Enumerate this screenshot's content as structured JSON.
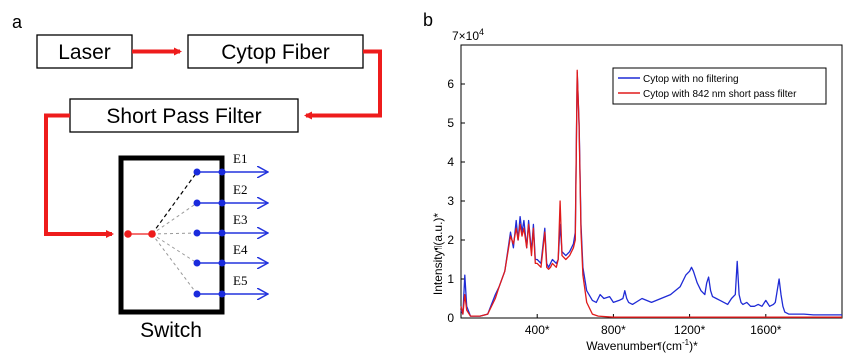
{
  "panels": {
    "a": "a",
    "b": "b"
  },
  "diagram": {
    "laser": "Laser",
    "fiber": "Cytop Fiber",
    "filter": "Short Pass Filter",
    "switch": "Switch",
    "outputs": [
      "E1",
      "E2",
      "E3",
      "E4",
      "E5"
    ],
    "colors": {
      "arrow": "#ee1c1c",
      "output": "#2233dd",
      "node_red": "#ee1c1c",
      "node_blue": "#1a2bdd"
    }
  },
  "chart_data": {
    "type": "line",
    "xlabel": "Wavenumber (cm⁻¹)",
    "ylabel": "Intensity (a.u.)",
    "y_exponent": "×10⁴",
    "xlim": [
      0,
      2000
    ],
    "ylim": [
      0,
      7
    ],
    "xticks": [
      400,
      800,
      1200,
      1600
    ],
    "xtick_labels": [
      "400",
      "800",
      "1200",
      "1600"
    ],
    "yticks": [
      0,
      1,
      2,
      3,
      4,
      5,
      6,
      7
    ],
    "legend_position": "top-right",
    "series": [
      {
        "name": "Cytop with no filtering",
        "color": "#1f2bd6",
        "x": [
          0,
          10,
          20,
          30,
          50,
          100,
          140,
          180,
          200,
          230,
          260,
          275,
          290,
          300,
          310,
          320,
          330,
          345,
          355,
          370,
          380,
          390,
          400,
          420,
          440,
          450,
          460,
          470,
          480,
          500,
          510,
          520,
          530,
          550,
          570,
          590,
          600,
          610,
          620,
          630,
          640,
          660,
          690,
          710,
          720,
          730,
          750,
          780,
          800,
          830,
          850,
          860,
          870,
          880,
          900,
          950,
          1000,
          1050,
          1100,
          1150,
          1180,
          1200,
          1210,
          1220,
          1240,
          1260,
          1280,
          1290,
          1300,
          1310,
          1320,
          1340,
          1360,
          1380,
          1400,
          1420,
          1440,
          1450,
          1460,
          1470,
          1480,
          1500,
          1520,
          1540,
          1560,
          1580,
          1600,
          1620,
          1640,
          1650,
          1660,
          1670,
          1680,
          1690,
          1700,
          1720,
          1750,
          1800,
          1850,
          1900,
          1950,
          2000
        ],
        "y": [
          0.2,
          0.1,
          1.1,
          0.3,
          0.05,
          0.05,
          0.1,
          0.6,
          0.8,
          1.2,
          2.2,
          1.8,
          2.5,
          2.0,
          2.6,
          2.2,
          2.5,
          1.8,
          2.5,
          1.7,
          2.4,
          1.5,
          1.5,
          1.4,
          2.3,
          1.4,
          1.3,
          1.4,
          1.5,
          1.4,
          1.5,
          2.4,
          1.7,
          1.6,
          1.7,
          1.9,
          2.2,
          6.3,
          5.0,
          2.4,
          1.3,
          0.7,
          0.45,
          0.4,
          0.5,
          0.6,
          0.5,
          0.55,
          0.4,
          0.45,
          0.5,
          0.7,
          0.5,
          0.4,
          0.35,
          0.5,
          0.4,
          0.5,
          0.6,
          0.8,
          1.1,
          1.2,
          1.3,
          1.2,
          0.9,
          0.7,
          0.6,
          0.9,
          1.05,
          0.7,
          0.55,
          0.5,
          0.45,
          0.4,
          0.35,
          0.5,
          0.6,
          1.45,
          0.6,
          0.4,
          0.35,
          0.4,
          0.3,
          0.3,
          0.35,
          0.3,
          0.45,
          0.3,
          0.35,
          0.4,
          0.7,
          1.0,
          0.6,
          0.3,
          0.15,
          0.1,
          0.1,
          0.1,
          0.08,
          0.08,
          0.08,
          0.08
        ]
      },
      {
        "name": "Cytop with 842 nm short pass filter",
        "color": "#e01b1b",
        "x": [
          0,
          10,
          20,
          30,
          50,
          100,
          140,
          180,
          200,
          230,
          260,
          275,
          290,
          300,
          310,
          320,
          330,
          345,
          355,
          370,
          380,
          390,
          400,
          420,
          440,
          450,
          460,
          470,
          480,
          500,
          510,
          520,
          530,
          550,
          570,
          590,
          600,
          610,
          620,
          630,
          640,
          660,
          690,
          720,
          800,
          1000,
          1200,
          1400,
          1600,
          1800,
          2000
        ],
        "y": [
          0.3,
          0.1,
          0.6,
          0.2,
          0.05,
          0.05,
          0.1,
          0.5,
          0.8,
          1.2,
          2.1,
          1.9,
          2.3,
          2.0,
          2.4,
          2.1,
          2.3,
          1.8,
          2.4,
          1.6,
          2.3,
          1.4,
          1.4,
          1.3,
          2.2,
          1.3,
          1.25,
          1.3,
          1.4,
          1.3,
          1.5,
          3.0,
          1.6,
          1.5,
          1.6,
          1.8,
          2.0,
          6.35,
          4.9,
          2.2,
          1.1,
          0.4,
          0.1,
          0.05,
          0.02,
          0.02,
          0.02,
          0.02,
          0.02,
          0.02,
          0.02
        ]
      }
    ]
  }
}
